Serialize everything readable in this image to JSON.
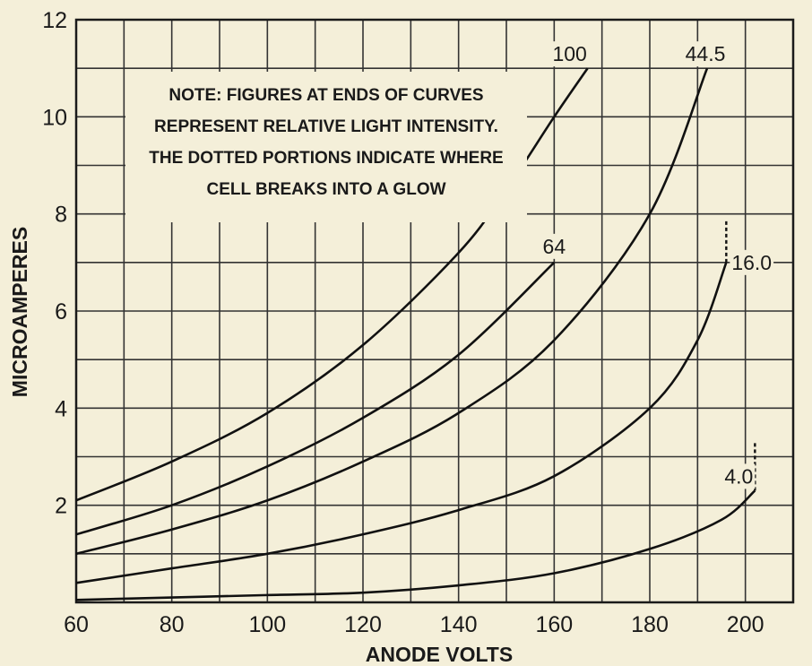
{
  "chart_data": {
    "type": "line",
    "xlabel": "ANODE VOLTS",
    "ylabel": "MICROAMPERES",
    "xlim": [
      60,
      210
    ],
    "ylim": [
      0,
      12
    ],
    "x_ticks": [
      "60",
      "80",
      "100",
      "120",
      "140",
      "160",
      "180",
      "200"
    ],
    "y_ticks": [
      "2",
      "4",
      "6",
      "8",
      "10",
      "12"
    ],
    "grid": true,
    "note": [
      "NOTE: FIGURES AT ENDS OF CURVES",
      "REPRESENT RELATIVE LIGHT INTENSITY.",
      "THE DOTTED PORTIONS INDICATE WHERE",
      "CELL BREAKS INTO A GLOW"
    ],
    "series": [
      {
        "name": "100",
        "x": [
          60,
          80,
          100,
          120,
          140,
          150,
          160,
          167
        ],
        "y": [
          2.1,
          2.9,
          3.9,
          5.3,
          7.2,
          8.5,
          10.0,
          11.0
        ]
      },
      {
        "name": "64",
        "x": [
          60,
          80,
          100,
          120,
          140,
          160
        ],
        "y": [
          1.4,
          2.0,
          2.8,
          3.8,
          5.1,
          7.0
        ]
      },
      {
        "name": "44.5",
        "x": [
          60,
          80,
          100,
          120,
          140,
          160,
          180,
          192
        ],
        "y": [
          1.0,
          1.5,
          2.1,
          2.9,
          3.9,
          5.4,
          8.0,
          11.0
        ]
      },
      {
        "name": "16.0",
        "x": [
          60,
          80,
          100,
          120,
          140,
          160,
          180,
          190,
          196
        ],
        "y": [
          0.4,
          0.7,
          1.0,
          1.4,
          1.9,
          2.6,
          4.0,
          5.4,
          7.0
        ],
        "dotted_x": [
          196,
          196
        ],
        "dotted_y": [
          7.0,
          7.9
        ]
      },
      {
        "name": "4.0",
        "x": [
          60,
          80,
          100,
          120,
          140,
          160,
          180,
          195,
          202
        ],
        "y": [
          0.05,
          0.1,
          0.15,
          0.2,
          0.35,
          0.6,
          1.1,
          1.7,
          2.3
        ],
        "dotted_x": [
          202,
          202
        ],
        "dotted_y": [
          2.3,
          3.3
        ]
      }
    ]
  }
}
